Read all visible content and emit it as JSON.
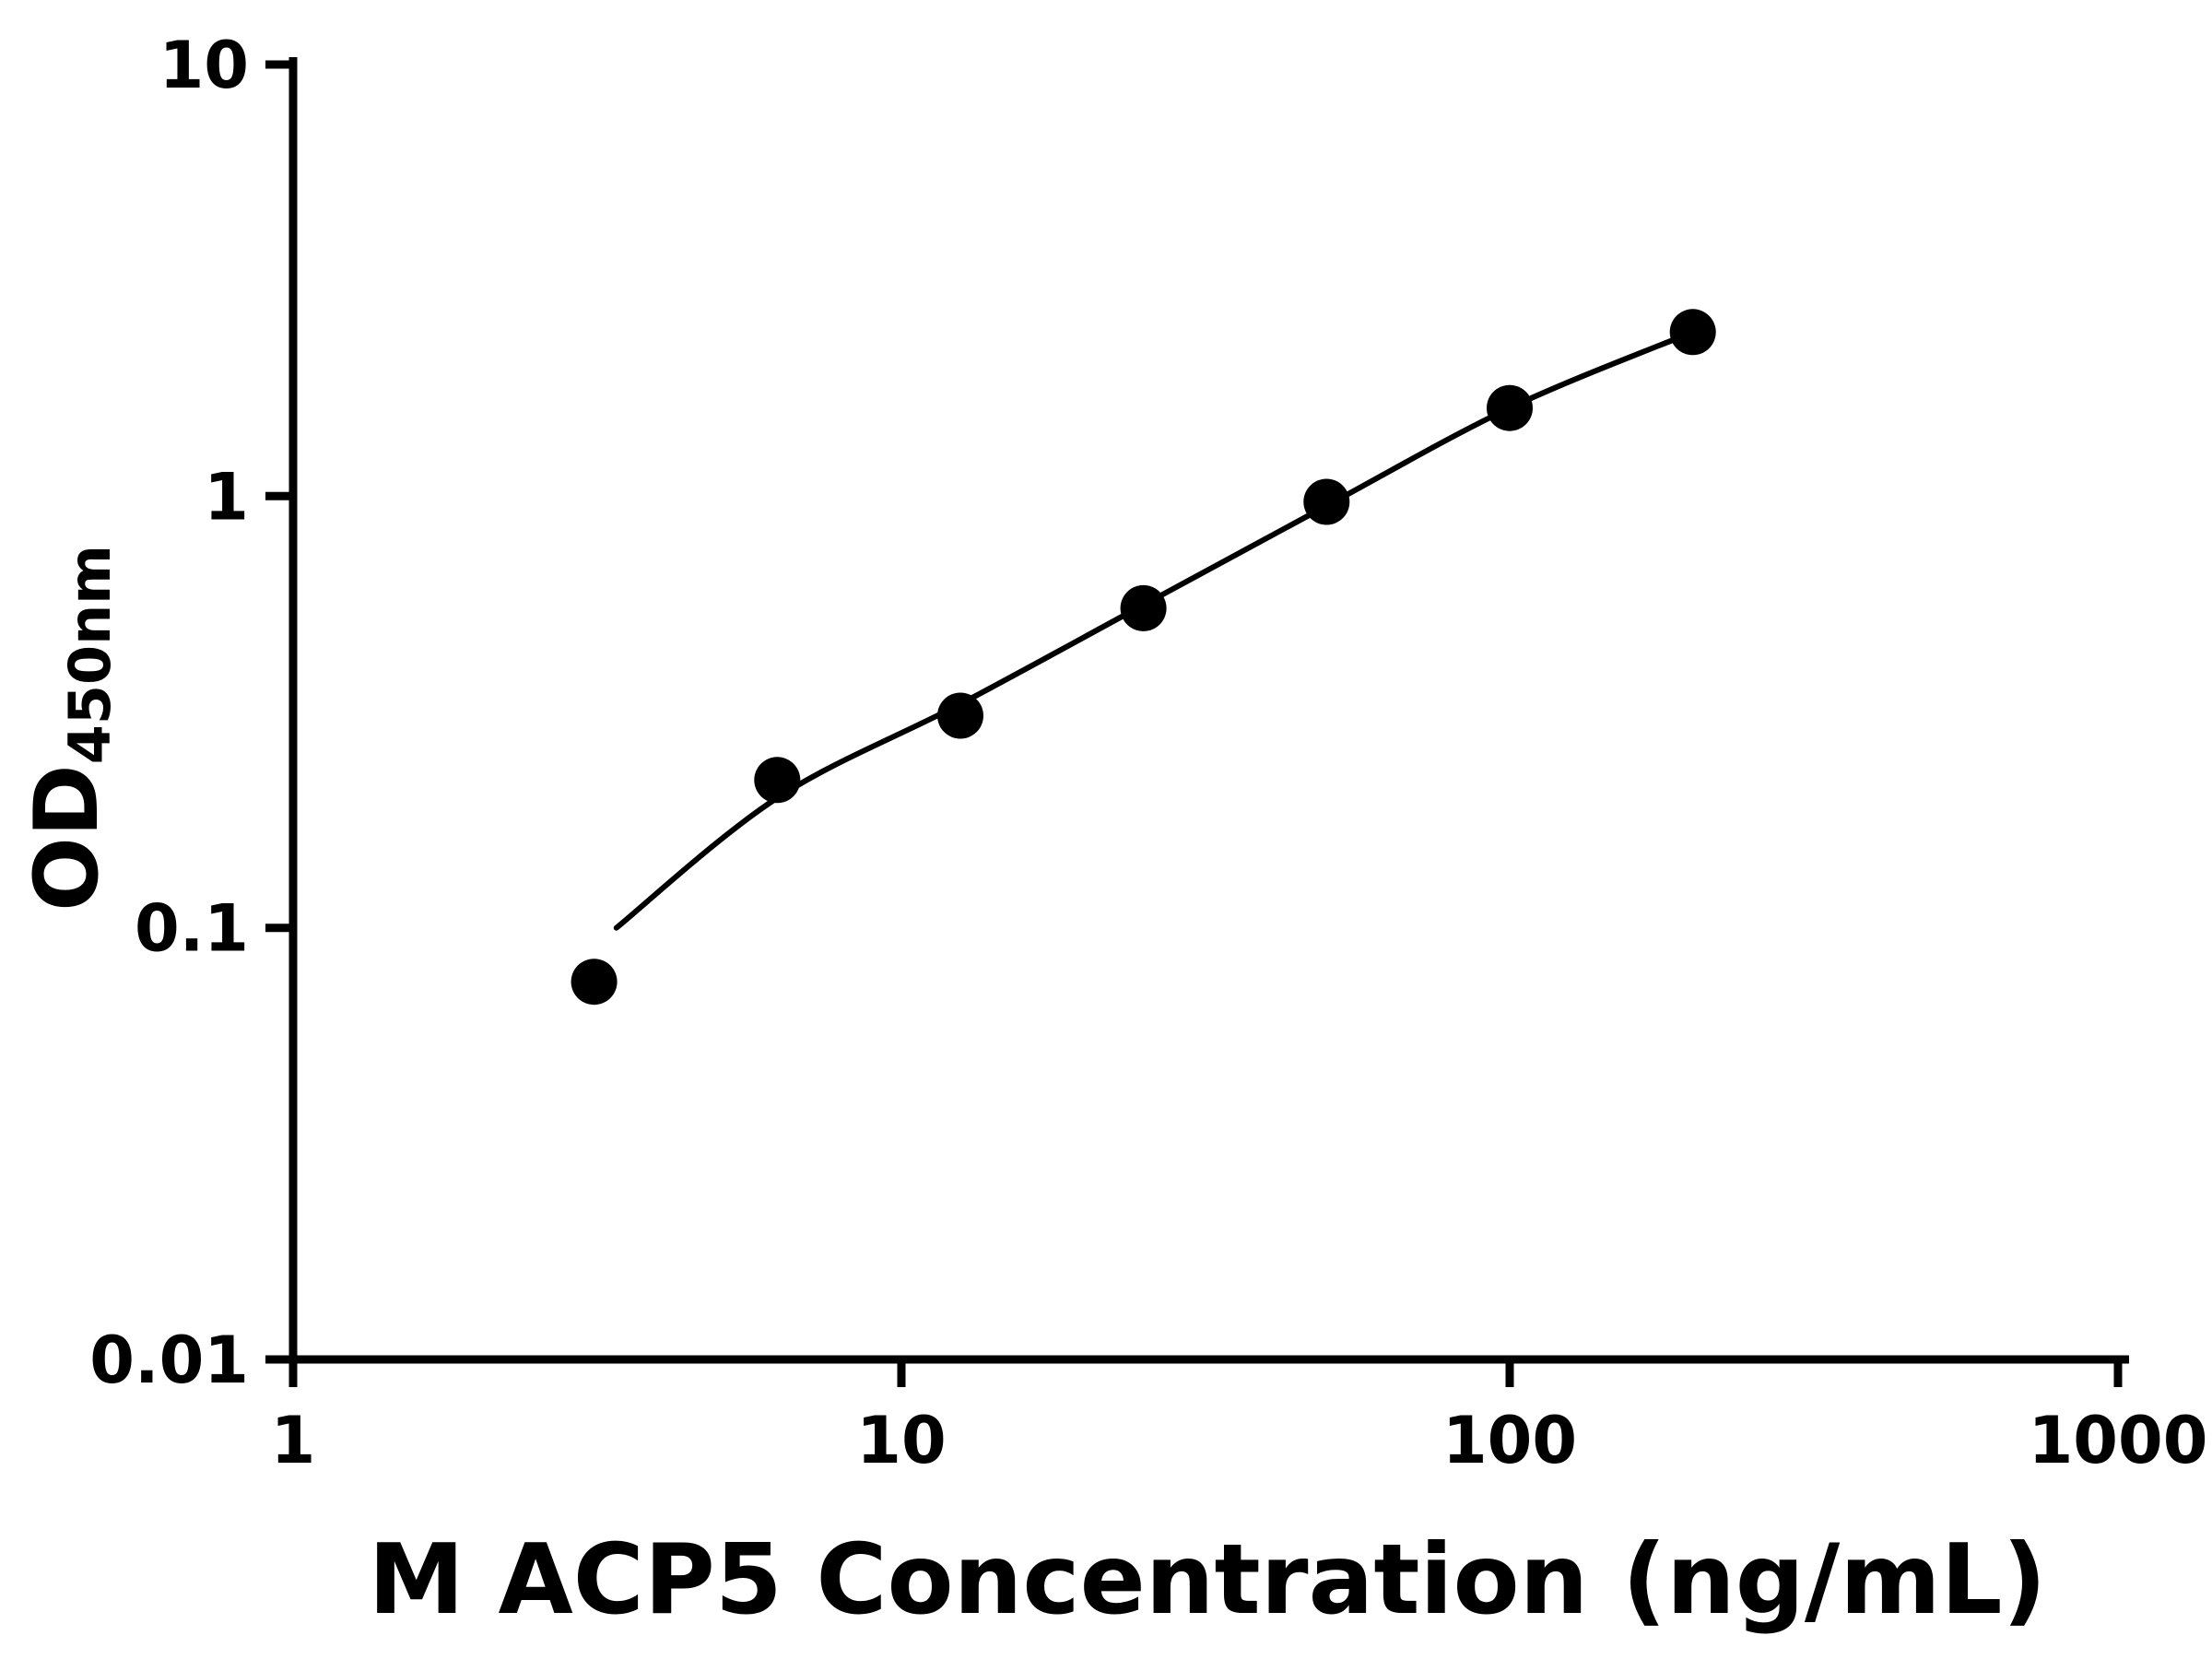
{
  "chart_data": {
    "type": "scatter",
    "title": "",
    "xlabel": "M ACP5 Concentration (ng/mL)",
    "ylabel_main": "OD",
    "ylabel_sub": "450nm",
    "x_scale": "log",
    "y_scale": "log",
    "xlim": [
      1,
      1000
    ],
    "ylim": [
      0.01,
      10
    ],
    "x_ticks": [
      1,
      10,
      100,
      1000
    ],
    "x_tick_labels": [
      "1",
      "10",
      "100",
      "1000"
    ],
    "y_ticks": [
      0.01,
      0.1,
      1,
      10
    ],
    "y_tick_labels": [
      "0.01",
      "0.1",
      "1",
      "10"
    ],
    "grid": false,
    "legend": false,
    "series": [
      {
        "marker": "circle",
        "color": "#000000",
        "marker_radius": 25,
        "x": [
          3.125,
          6.25,
          12.5,
          25,
          50,
          100,
          200
        ],
        "y": [
          0.075,
          0.22,
          0.31,
          0.55,
          0.97,
          1.6,
          2.4
        ]
      }
    ],
    "fit_curve": {
      "color": "#000000",
      "stroke_width": 6,
      "x": [
        3.4,
        6.25,
        12.5,
        25,
        50,
        100,
        200
      ],
      "y": [
        0.1,
        0.2,
        0.33,
        0.56,
        0.95,
        1.6,
        2.4
      ]
    },
    "colors": {
      "axis": "#000000",
      "background": "#ffffff"
    }
  }
}
